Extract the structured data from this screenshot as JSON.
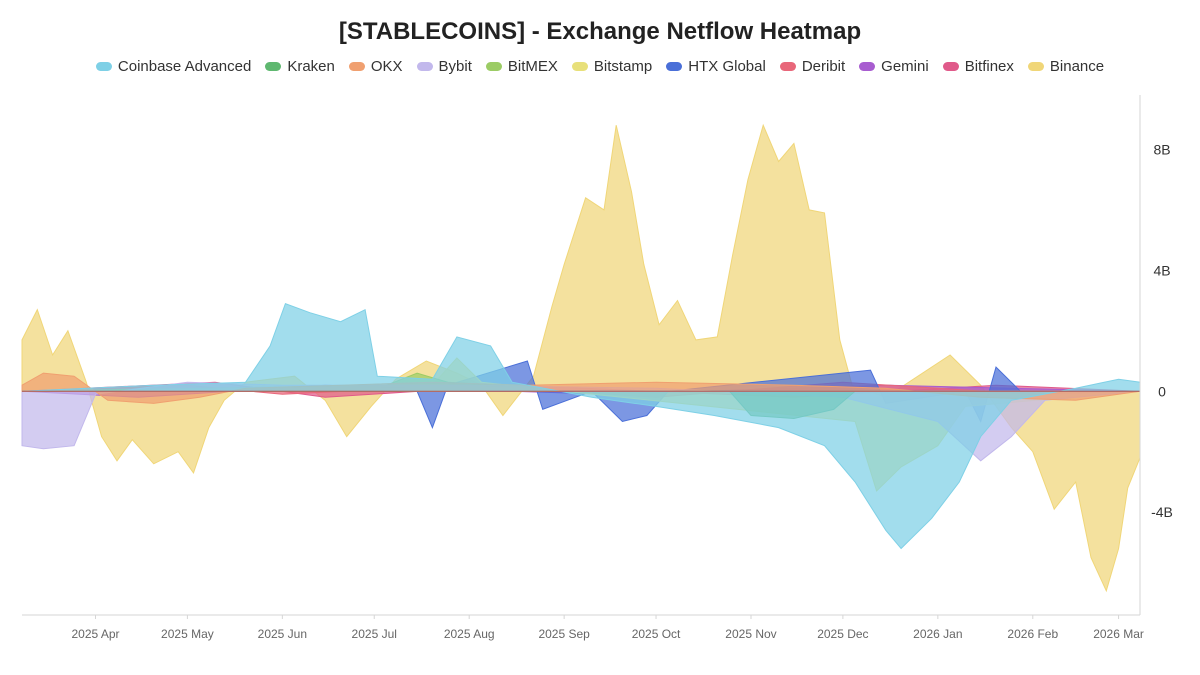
{
  "chart_data": {
    "type": "area",
    "title": "[STABLECOINS] - Exchange Netflow Heatmap",
    "legend_position": "top",
    "grid": false,
    "y_axis_position": "right",
    "ylim": [
      -7400000000,
      9800000000
    ],
    "xlim": [
      "2025-03-08",
      "2026-03-08"
    ],
    "y_ticks": [
      {
        "value": 8000000000,
        "label": "8B"
      },
      {
        "value": 4000000000,
        "label": "4B"
      },
      {
        "value": 0,
        "label": "0"
      },
      {
        "value": -4000000000,
        "label": "-4B"
      }
    ],
    "x_ticks": [
      {
        "date": "2025-04-01",
        "label": "2025 Apr"
      },
      {
        "date": "2025-05-01",
        "label": "2025 May"
      },
      {
        "date": "2025-06-01",
        "label": "2025 Jun"
      },
      {
        "date": "2025-07-01",
        "label": "2025 Jul"
      },
      {
        "date": "2025-08-01",
        "label": "2025 Aug"
      },
      {
        "date": "2025-09-01",
        "label": "2025 Sep"
      },
      {
        "date": "2025-10-01",
        "label": "2025 Oct"
      },
      {
        "date": "2025-11-01",
        "label": "2025 Nov"
      },
      {
        "date": "2025-12-01",
        "label": "2025 Dec"
      },
      {
        "date": "2026-01-01",
        "label": "2026 Jan"
      },
      {
        "date": "2026-02-01",
        "label": "2026 Feb"
      },
      {
        "date": "2026-03-01",
        "label": "2026 Mar"
      }
    ],
    "series": [
      {
        "name": "Coinbase Advanced",
        "color": "#7ed0e6",
        "points": [
          [
            "2025-03-08",
            0
          ],
          [
            "2025-04-20",
            0.2
          ],
          [
            "2025-05-20",
            0.3
          ],
          [
            "2025-05-28",
            1.5
          ],
          [
            "2025-06-02",
            2.9
          ],
          [
            "2025-06-10",
            2.6
          ],
          [
            "2025-06-20",
            2.3
          ],
          [
            "2025-06-28",
            2.7
          ],
          [
            "2025-07-02",
            0.5
          ],
          [
            "2025-07-20",
            0.4
          ],
          [
            "2025-07-28",
            1.8
          ],
          [
            "2025-08-08",
            1.5
          ],
          [
            "2025-08-15",
            0.3
          ],
          [
            "2025-09-10",
            -0.2
          ],
          [
            "2025-10-01",
            -0.5
          ],
          [
            "2025-10-20",
            -0.8
          ],
          [
            "2025-11-10",
            -1.2
          ],
          [
            "2025-11-25",
            -1.8
          ],
          [
            "2025-12-05",
            -3.0
          ],
          [
            "2025-12-15",
            -4.6
          ],
          [
            "2025-12-20",
            -5.2
          ],
          [
            "2025-12-30",
            -4.2
          ],
          [
            "2026-01-08",
            -3.0
          ],
          [
            "2026-01-15",
            -1.5
          ],
          [
            "2026-01-25",
            -0.3
          ],
          [
            "2026-02-15",
            0.1
          ],
          [
            "2026-03-01",
            0.4
          ],
          [
            "2026-03-08",
            0.3
          ]
        ]
      },
      {
        "name": "Kraken",
        "color": "#5fb870",
        "points": [
          [
            "2025-03-08",
            0
          ],
          [
            "2025-10-25",
            0
          ],
          [
            "2025-11-01",
            -0.8
          ],
          [
            "2025-11-15",
            -0.9
          ],
          [
            "2025-11-28",
            -0.6
          ],
          [
            "2025-12-05",
            0
          ],
          [
            "2026-03-08",
            0
          ]
        ]
      },
      {
        "name": "OKX",
        "color": "#f0a070",
        "points": [
          [
            "2025-03-08",
            0.2
          ],
          [
            "2025-03-15",
            0.6
          ],
          [
            "2025-03-25",
            0.5
          ],
          [
            "2025-04-05",
            -0.3
          ],
          [
            "2025-04-20",
            -0.4
          ],
          [
            "2025-05-05",
            -0.2
          ],
          [
            "2025-05-20",
            0.1
          ],
          [
            "2025-06-20",
            0.2
          ],
          [
            "2025-07-20",
            0.3
          ],
          [
            "2025-08-20",
            0.2
          ],
          [
            "2025-10-01",
            0.3
          ],
          [
            "2025-11-15",
            0.2
          ],
          [
            "2025-12-15",
            0.1
          ],
          [
            "2026-01-15",
            -0.2
          ],
          [
            "2026-02-15",
            -0.3
          ],
          [
            "2026-03-08",
            0
          ]
        ]
      },
      {
        "name": "Bybit",
        "color": "#c2b8ec",
        "points": [
          [
            "2025-03-08",
            -1.8
          ],
          [
            "2025-03-15",
            -1.9
          ],
          [
            "2025-03-25",
            -1.8
          ],
          [
            "2025-04-01",
            -0.1
          ],
          [
            "2025-05-01",
            0.3
          ],
          [
            "2025-06-01",
            0.2
          ],
          [
            "2025-08-01",
            0.2
          ],
          [
            "2025-10-01",
            0.1
          ],
          [
            "2025-12-01",
            -0.2
          ],
          [
            "2026-01-01",
            -1.0
          ],
          [
            "2026-01-15",
            -2.3
          ],
          [
            "2026-01-25",
            -1.5
          ],
          [
            "2026-02-05",
            -0.3
          ],
          [
            "2026-03-08",
            0
          ]
        ]
      },
      {
        "name": "BitMEX",
        "color": "#9ccc65",
        "points": [
          [
            "2025-03-08",
            0
          ],
          [
            "2025-07-05",
            0.2
          ],
          [
            "2025-07-15",
            0.6
          ],
          [
            "2025-07-25",
            0.3
          ],
          [
            "2025-08-10",
            0.2
          ],
          [
            "2025-09-01",
            0
          ],
          [
            "2026-03-08",
            0
          ]
        ]
      },
      {
        "name": "Bitstamp",
        "color": "#e8e07a",
        "points": [
          [
            "2025-03-08",
            0
          ],
          [
            "2025-07-20",
            0.2
          ],
          [
            "2025-07-28",
            1.1
          ],
          [
            "2025-08-05",
            0.3
          ],
          [
            "2025-09-01",
            0
          ],
          [
            "2025-12-05",
            -1.0
          ],
          [
            "2025-12-12",
            -3.3
          ],
          [
            "2025-12-20",
            -2.5
          ],
          [
            "2026-01-01",
            -1.8
          ],
          [
            "2026-01-10",
            -0.5
          ],
          [
            "2026-03-08",
            0
          ]
        ]
      },
      {
        "name": "HTX Global",
        "color": "#4a6fd8",
        "points": [
          [
            "2025-03-08",
            0
          ],
          [
            "2025-07-15",
            0
          ],
          [
            "2025-07-20",
            -1.2
          ],
          [
            "2025-07-25",
            0.2
          ],
          [
            "2025-08-20",
            1.0
          ],
          [
            "2025-08-25",
            -0.6
          ],
          [
            "2025-09-10",
            0
          ],
          [
            "2025-09-20",
            -1.0
          ],
          [
            "2025-09-28",
            -0.8
          ],
          [
            "2025-10-05",
            0
          ],
          [
            "2025-12-10",
            0.7
          ],
          [
            "2025-12-15",
            -0.4
          ],
          [
            "2026-01-10",
            0
          ],
          [
            "2026-01-15",
            -1.0
          ],
          [
            "2026-01-20",
            0.8
          ],
          [
            "2026-01-28",
            0
          ],
          [
            "2026-03-08",
            0
          ]
        ]
      },
      {
        "name": "Deribit",
        "color": "#e8677a",
        "points": [
          [
            "2025-03-08",
            0
          ],
          [
            "2025-05-01",
            0.2
          ],
          [
            "2025-06-01",
            -0.1
          ],
          [
            "2025-08-01",
            0.2
          ],
          [
            "2025-10-01",
            -0.2
          ],
          [
            "2025-12-01",
            0.3
          ],
          [
            "2026-02-01",
            -0.1
          ],
          [
            "2026-03-08",
            0
          ]
        ]
      },
      {
        "name": "Gemini",
        "color": "#a85dd0",
        "points": [
          [
            "2025-03-08",
            0
          ],
          [
            "2025-04-15",
            -0.2
          ],
          [
            "2025-06-15",
            0.2
          ],
          [
            "2025-09-15",
            -0.1
          ],
          [
            "2025-12-15",
            0.2
          ],
          [
            "2026-03-08",
            0
          ]
        ]
      },
      {
        "name": "Bitfinex",
        "color": "#e05a8a",
        "points": [
          [
            "2025-03-08",
            0
          ],
          [
            "2025-05-10",
            0.3
          ],
          [
            "2025-06-15",
            -0.2
          ],
          [
            "2025-08-15",
            0.2
          ],
          [
            "2025-11-15",
            -0.2
          ],
          [
            "2026-01-20",
            0.2
          ],
          [
            "2026-03-08",
            0
          ]
        ]
      },
      {
        "name": "Binance",
        "color": "#f0d678",
        "points": [
          [
            "2025-03-08",
            1.7
          ],
          [
            "2025-03-13",
            2.7
          ],
          [
            "2025-03-18",
            1.2
          ],
          [
            "2025-03-23",
            2.0
          ],
          [
            "2025-03-29",
            0.3
          ],
          [
            "2025-04-03",
            -1.5
          ],
          [
            "2025-04-08",
            -2.3
          ],
          [
            "2025-04-13",
            -1.6
          ],
          [
            "2025-04-20",
            -2.4
          ],
          [
            "2025-04-28",
            -2.0
          ],
          [
            "2025-05-03",
            -2.7
          ],
          [
            "2025-05-08",
            -1.2
          ],
          [
            "2025-05-13",
            -0.3
          ],
          [
            "2025-05-20",
            0.3
          ],
          [
            "2025-06-05",
            0.5
          ],
          [
            "2025-06-15",
            -0.3
          ],
          [
            "2025-06-22",
            -1.5
          ],
          [
            "2025-06-30",
            -0.5
          ],
          [
            "2025-07-08",
            0.4
          ],
          [
            "2025-07-18",
            1.0
          ],
          [
            "2025-07-28",
            0.6
          ],
          [
            "2025-08-05",
            0.2
          ],
          [
            "2025-08-12",
            -0.8
          ],
          [
            "2025-08-22",
            0.5
          ],
          [
            "2025-08-28",
            2.8
          ],
          [
            "2025-09-01",
            4.2
          ],
          [
            "2025-09-08",
            6.4
          ],
          [
            "2025-09-14",
            6.0
          ],
          [
            "2025-09-18",
            8.8
          ],
          [
            "2025-09-23",
            6.6
          ],
          [
            "2025-09-27",
            4.2
          ],
          [
            "2025-10-02",
            2.2
          ],
          [
            "2025-10-08",
            3.0
          ],
          [
            "2025-10-14",
            1.7
          ],
          [
            "2025-10-21",
            1.8
          ],
          [
            "2025-10-26",
            4.5
          ],
          [
            "2025-10-31",
            7.0
          ],
          [
            "2025-11-05",
            8.8
          ],
          [
            "2025-11-10",
            7.6
          ],
          [
            "2025-11-15",
            8.2
          ],
          [
            "2025-11-20",
            6.0
          ],
          [
            "2025-11-25",
            5.9
          ],
          [
            "2025-11-30",
            1.7
          ],
          [
            "2025-12-04",
            0.2
          ],
          [
            "2025-12-15",
            -0.2
          ],
          [
            "2026-01-05",
            1.2
          ],
          [
            "2026-01-15",
            0.2
          ],
          [
            "2026-01-25",
            -1.2
          ],
          [
            "2026-02-01",
            -2.0
          ],
          [
            "2026-02-08",
            -3.9
          ],
          [
            "2026-02-15",
            -3.0
          ],
          [
            "2026-02-20",
            -5.5
          ],
          [
            "2026-02-25",
            -6.6
          ],
          [
            "2026-03-01",
            -5.2
          ],
          [
            "2026-03-04",
            -3.2
          ],
          [
            "2026-03-08",
            -2.2
          ]
        ]
      }
    ]
  }
}
